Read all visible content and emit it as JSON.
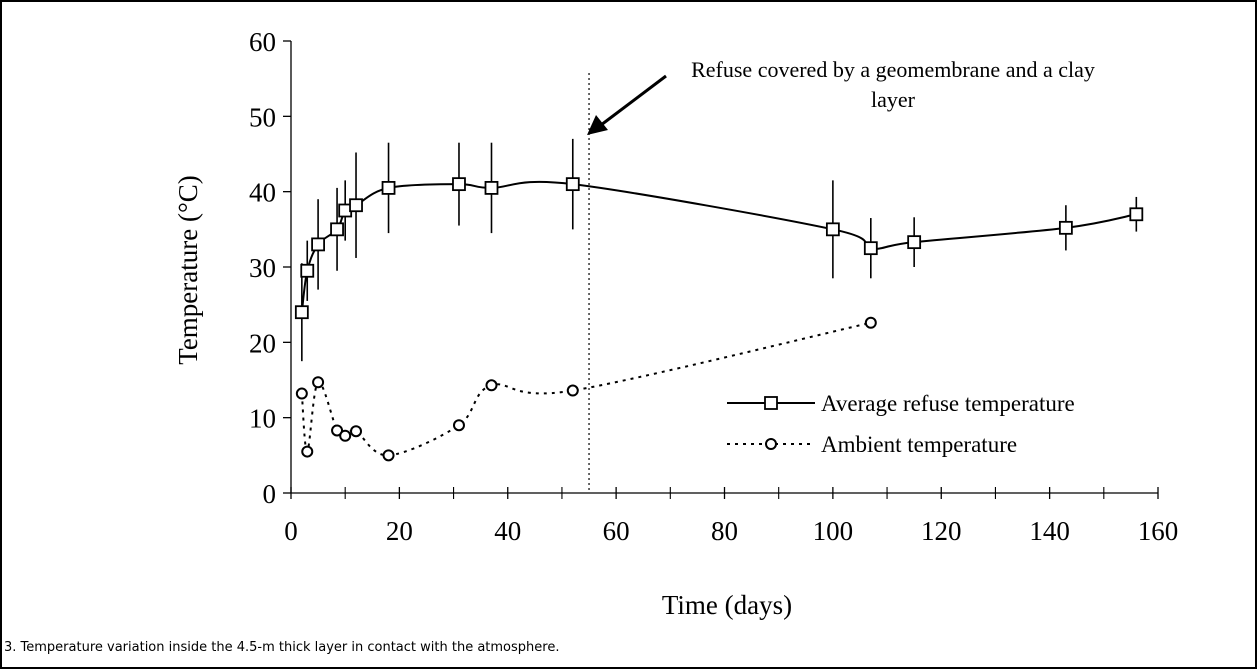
{
  "caption": "3.  Temperature variation inside the 4.5-m thick layer in contact with the atmosphere.",
  "chart_data": {
    "type": "line",
    "xlabel": "Time (days)",
    "ylabel": "Temperature (°C)",
    "xlim": [
      0,
      160
    ],
    "ylim": [
      0,
      60
    ],
    "x_ticks": [
      "0",
      "20",
      "40",
      "60",
      "80",
      "100",
      "120",
      "140",
      "160"
    ],
    "y_ticks": [
      "0",
      "10",
      "20",
      "30",
      "40",
      "50",
      "60"
    ],
    "grid": false,
    "legend_position": "lower-right",
    "annotation": {
      "line1": "Refuse covered by a geomembrane and a clay",
      "line2": "layer",
      "x": 55
    },
    "series": [
      {
        "name": "Average refuse temperature",
        "line_style": "solid",
        "marker": "square",
        "points": [
          {
            "x": 2,
            "y": 24,
            "err": 6.5
          },
          {
            "x": 3,
            "y": 29.5,
            "err": 4
          },
          {
            "x": 5,
            "y": 33,
            "err": 6
          },
          {
            "x": 8.5,
            "y": 35,
            "err": 5.5
          },
          {
            "x": 10,
            "y": 37.5,
            "err": 4
          },
          {
            "x": 12,
            "y": 38.2,
            "err": 7
          },
          {
            "x": 18,
            "y": 40.5,
            "err": 6
          },
          {
            "x": 31,
            "y": 41,
            "err": 5.5
          },
          {
            "x": 37,
            "y": 40.5,
            "err": 6
          },
          {
            "x": 52,
            "y": 41,
            "err": 6
          },
          {
            "x": 100,
            "y": 35,
            "err": 6.5
          },
          {
            "x": 107,
            "y": 32.5,
            "err": 4
          },
          {
            "x": 115,
            "y": 33.3,
            "err": 3.3
          },
          {
            "x": 143,
            "y": 35.2,
            "err": 3
          },
          {
            "x": 156,
            "y": 37,
            "err": 2.3
          }
        ]
      },
      {
        "name": "Ambient temperature",
        "line_style": "dotted",
        "marker": "circle",
        "points": [
          {
            "x": 2,
            "y": 13.2
          },
          {
            "x": 3,
            "y": 5.5
          },
          {
            "x": 5,
            "y": 14.7
          },
          {
            "x": 8.5,
            "y": 8.3
          },
          {
            "x": 10,
            "y": 7.6
          },
          {
            "x": 12,
            "y": 8.2
          },
          {
            "x": 18,
            "y": 5
          },
          {
            "x": 31,
            "y": 9
          },
          {
            "x": 37,
            "y": 14.3
          },
          {
            "x": 52,
            "y": 13.6
          },
          {
            "x": 107,
            "y": 22.6
          }
        ]
      }
    ]
  }
}
